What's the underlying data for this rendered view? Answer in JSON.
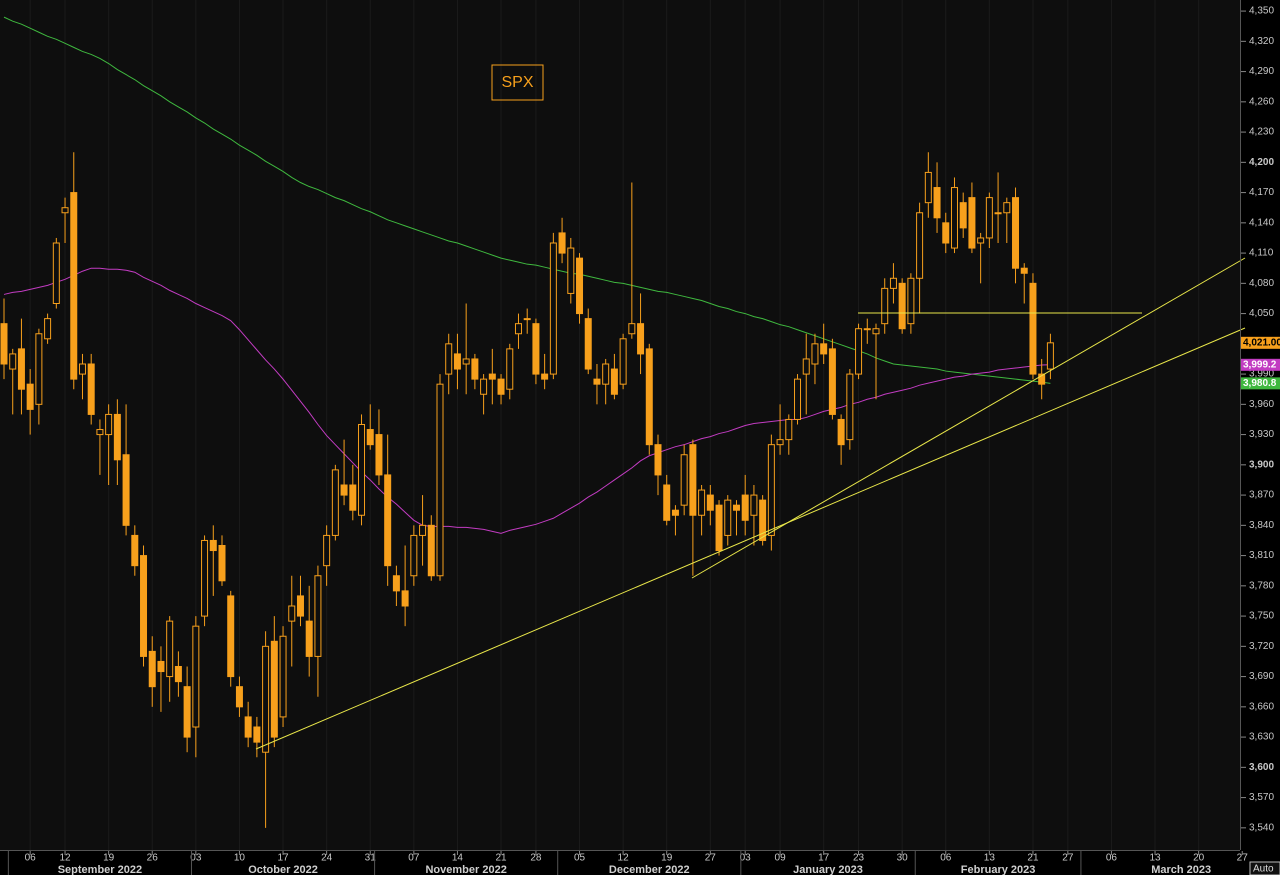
{
  "chart_data": {
    "type": "candlestick",
    "title": "SPX",
    "x": [
      "2022-08-31",
      "2022-09-01",
      "2022-09-02",
      "2022-09-06",
      "2022-09-07",
      "2022-09-08",
      "2022-09-09",
      "2022-09-12",
      "2022-09-13",
      "2022-09-14",
      "2022-09-15",
      "2022-09-16",
      "2022-09-19",
      "2022-09-20",
      "2022-09-21",
      "2022-09-22",
      "2022-09-23",
      "2022-09-26",
      "2022-09-27",
      "2022-09-28",
      "2022-09-29",
      "2022-09-30",
      "2022-10-03",
      "2022-10-04",
      "2022-10-05",
      "2022-10-06",
      "2022-10-07",
      "2022-10-10",
      "2022-10-11",
      "2022-10-12",
      "2022-10-13",
      "2022-10-14",
      "2022-10-17",
      "2022-10-18",
      "2022-10-19",
      "2022-10-20",
      "2022-10-21",
      "2022-10-24",
      "2022-10-25",
      "2022-10-26",
      "2022-10-27",
      "2022-10-28",
      "2022-10-31",
      "2022-11-01",
      "2022-11-02",
      "2022-11-03",
      "2022-11-04",
      "2022-11-07",
      "2022-11-08",
      "2022-11-09",
      "2022-11-10",
      "2022-11-11",
      "2022-11-14",
      "2022-11-15",
      "2022-11-16",
      "2022-11-17",
      "2022-11-18",
      "2022-11-21",
      "2022-11-22",
      "2022-11-23",
      "2022-11-25",
      "2022-11-28",
      "2022-11-29",
      "2022-11-30",
      "2022-12-01",
      "2022-12-02",
      "2022-12-05",
      "2022-12-06",
      "2022-12-07",
      "2022-12-08",
      "2022-12-09",
      "2022-12-12",
      "2022-12-13",
      "2022-12-14",
      "2022-12-15",
      "2022-12-16",
      "2022-12-19",
      "2022-12-20",
      "2022-12-21",
      "2022-12-22",
      "2022-12-23",
      "2022-12-27",
      "2022-12-28",
      "2022-12-29",
      "2022-12-30",
      "2023-01-03",
      "2023-01-04",
      "2023-01-05",
      "2023-01-06",
      "2023-01-09",
      "2023-01-10",
      "2023-01-11",
      "2023-01-12",
      "2023-01-13",
      "2023-01-17",
      "2023-01-18",
      "2023-01-19",
      "2023-01-20",
      "2023-01-23",
      "2023-01-24",
      "2023-01-25",
      "2023-01-26",
      "2023-01-27",
      "2023-01-30",
      "2023-01-31",
      "2023-02-01",
      "2023-02-02",
      "2023-02-03",
      "2023-02-06",
      "2023-02-07",
      "2023-02-08",
      "2023-02-09",
      "2023-02-10",
      "2023-02-13",
      "2023-02-14",
      "2023-02-15",
      "2023-02-16",
      "2023-02-17",
      "2023-02-21",
      "2023-02-22",
      "2023-02-23"
    ],
    "ohlc": {
      "color": "#f7a01c",
      "last_value_label": "4,021.00",
      "open": [
        4040,
        3995,
        4015,
        3980,
        3960,
        4025,
        4060,
        4150,
        4170,
        3990,
        4000,
        3930,
        3930,
        3950,
        3910,
        3830,
        3810,
        3715,
        3705,
        3690,
        3700,
        3680,
        3640,
        3750,
        3825,
        3820,
        3770,
        3680,
        3650,
        3640,
        3615,
        3725,
        3650,
        3745,
        3770,
        3745,
        3710,
        3800,
        3830,
        3880,
        3880,
        3850,
        3935,
        3930,
        3890,
        3790,
        3775,
        3790,
        3830,
        3840,
        3790,
        3990,
        4010,
        4000,
        4005,
        3970,
        3990,
        3985,
        3975,
        4030,
        4045,
        4040,
        3990,
        3990,
        4130,
        4070,
        4105,
        4045,
        3985,
        3980,
        3995,
        3980,
        4030,
        4040,
        4015,
        3920,
        3880,
        3855,
        3860,
        3920,
        3850,
        3870,
        3860,
        3830,
        3860,
        3870,
        3850,
        3865,
        3830,
        3920,
        3925,
        3945,
        3990,
        4000,
        4020,
        4015,
        3945,
        3925,
        3990,
        4035,
        4030,
        4040,
        4075,
        4080,
        4040,
        4085,
        4160,
        4175,
        4140,
        4115,
        4160,
        4165,
        4120,
        4125,
        4150,
        4150,
        4165,
        4095,
        4080,
        3990,
        3995
      ],
      "high": [
        4065,
        4015,
        4045,
        3995,
        4035,
        4050,
        4125,
        4165,
        4210,
        4010,
        4010,
        3945,
        3960,
        3965,
        3960,
        3840,
        3820,
        3730,
        3720,
        3750,
        3715,
        3700,
        3750,
        3830,
        3840,
        3830,
        3775,
        3690,
        3665,
        3650,
        3735,
        3750,
        3740,
        3790,
        3790,
        3780,
        3800,
        3840,
        3900,
        3925,
        3900,
        3950,
        3960,
        3955,
        3930,
        3800,
        3820,
        3840,
        3870,
        3850,
        3990,
        4030,
        4030,
        4060,
        4010,
        3990,
        4015,
        3990,
        4020,
        4050,
        4055,
        4045,
        4010,
        4130,
        4145,
        4125,
        4110,
        4055,
        4000,
        4005,
        4010,
        4030,
        4180,
        4070,
        4020,
        3930,
        3890,
        3860,
        3920,
        3925,
        3880,
        3880,
        3865,
        3870,
        3865,
        3890,
        3880,
        3870,
        3930,
        3960,
        3950,
        3990,
        4030,
        4030,
        4040,
        4025,
        3950,
        3995,
        4040,
        4045,
        4040,
        4085,
        4100,
        4085,
        4090,
        4160,
        4210,
        4200,
        4150,
        4185,
        4170,
        4180,
        4130,
        4170,
        4190,
        4165,
        4175,
        4100,
        4090,
        4005,
        4030
      ],
      "low": [
        3985,
        3950,
        3950,
        3930,
        3940,
        4020,
        4055,
        4120,
        3975,
        3965,
        3940,
        3890,
        3880,
        3880,
        3830,
        3790,
        3700,
        3660,
        3655,
        3665,
        3670,
        3615,
        3610,
        3740,
        3770,
        3780,
        3680,
        3650,
        3620,
        3610,
        3540,
        3620,
        3640,
        3700,
        3740,
        3690,
        3670,
        3780,
        3825,
        3860,
        3845,
        3840,
        3915,
        3880,
        3780,
        3760,
        3740,
        3780,
        3800,
        3785,
        3785,
        3970,
        3975,
        3970,
        3975,
        3950,
        3960,
        3960,
        3965,
        4015,
        4030,
        3980,
        3975,
        3985,
        4100,
        4060,
        4040,
        3990,
        3960,
        3960,
        3965,
        3975,
        4025,
        3990,
        3910,
        3870,
        3840,
        3830,
        3850,
        3790,
        3830,
        3840,
        3810,
        3820,
        3830,
        3830,
        3820,
        3820,
        3815,
        3910,
        3910,
        3940,
        3950,
        3980,
        4000,
        3945,
        3900,
        3915,
        3985,
        4020,
        3965,
        4030,
        4060,
        4030,
        4030,
        4050,
        4145,
        4130,
        4110,
        4110,
        4125,
        4110,
        4080,
        4115,
        4120,
        4120,
        4080,
        4060,
        3985,
        3965,
        3985
      ],
      "close": [
        4000,
        4010,
        3975,
        3955,
        4030,
        4045,
        4120,
        4155,
        3985,
        4000,
        3950,
        3935,
        3950,
        3905,
        3840,
        3800,
        3710,
        3680,
        3695,
        3745,
        3685,
        3630,
        3740,
        3825,
        3815,
        3785,
        3690,
        3660,
        3630,
        3625,
        3720,
        3630,
        3730,
        3760,
        3750,
        3710,
        3790,
        3830,
        3895,
        3870,
        3855,
        3940,
        3920,
        3890,
        3800,
        3775,
        3760,
        3830,
        3840,
        3790,
        3980,
        4020,
        3995,
        4005,
        3985,
        3985,
        3985,
        3970,
        4015,
        4040,
        4045,
        3990,
        3985,
        4120,
        4110,
        4115,
        4050,
        3995,
        3980,
        4000,
        3970,
        4025,
        4040,
        4010,
        3920,
        3890,
        3845,
        3850,
        3910,
        3850,
        3875,
        3855,
        3815,
        3865,
        3855,
        3845,
        3870,
        3825,
        3920,
        3925,
        3945,
        3985,
        4005,
        4020,
        4010,
        3950,
        3920,
        3990,
        4035,
        4035,
        4035,
        4075,
        4085,
        4035,
        4085,
        4150,
        4190,
        4145,
        4120,
        4175,
        4135,
        4115,
        4125,
        4165,
        4150,
        4160,
        4095,
        4090,
        3990,
        3980,
        4021
      ]
    },
    "lines": [
      {
        "color": "#3fb83f",
        "last_value_label": "3,980.8",
        "values": [
          4344,
          4340,
          4337,
          4333,
          4329,
          4325,
          4322,
          4318,
          4314,
          4310,
          4307,
          4303,
          4298,
          4292,
          4287,
          4282,
          4276,
          4271,
          4266,
          4260,
          4255,
          4250,
          4244,
          4239,
          4233,
          4228,
          4223,
          4217,
          4212,
          4207,
          4201,
          4196,
          4191,
          4185,
          4180,
          4176,
          4173,
          4169,
          4165,
          4162,
          4158,
          4154,
          4151,
          4147,
          4143,
          4140,
          4137,
          4134,
          4131,
          4128,
          4125,
          4122,
          4120,
          4117,
          4114,
          4111,
          4108,
          4105,
          4103,
          4101,
          4099,
          4098,
          4096,
          4094,
          4092,
          4090,
          4089,
          4087,
          4085,
          4083,
          4081,
          4080,
          4078,
          4076,
          4074,
          4072,
          4071,
          4069,
          4067,
          4065,
          4063,
          4060,
          4057,
          4055,
          4052,
          4050,
          4047,
          4045,
          4042,
          4039,
          4037,
          4034,
          4031,
          4028,
          4025,
          4022,
          4019,
          4016,
          4013,
          4010,
          4006,
          4003,
          4000,
          3999,
          3998,
          3997,
          3996,
          3995,
          3993,
          3992,
          3991,
          3990,
          3989,
          3988,
          3987,
          3986,
          3985,
          3984,
          3983,
          3982,
          3980.8
        ]
      },
      {
        "color": "#c23cc2",
        "last_value_label": "3,999.2",
        "values": [
          4069,
          4071,
          4072,
          4074,
          4076,
          4078,
          4081,
          4084,
          4088,
          4092,
          4095,
          4095,
          4094,
          4094,
          4093,
          4091,
          4086,
          4082,
          4078,
          4073,
          4069,
          4065,
          4060,
          4056,
          4052,
          4048,
          4043,
          4034,
          4024,
          4014,
          4004,
          3995,
          3985,
          3974,
          3963,
          3952,
          3940,
          3929,
          3920,
          3911,
          3902,
          3893,
          3885,
          3876,
          3868,
          3861,
          3853,
          3845,
          3840,
          3839,
          3839,
          3839,
          3838,
          3838,
          3837,
          3836,
          3834,
          3832,
          3835,
          3837,
          3839,
          3841,
          3844,
          3847,
          3852,
          3857,
          3862,
          3868,
          3873,
          3879,
          3885,
          3891,
          3897,
          3904,
          3909,
          3912,
          3915,
          3918,
          3920,
          3923,
          3926,
          3928,
          3931,
          3933,
          3936,
          3939,
          3941,
          3942,
          3943,
          3944,
          3945,
          3945,
          3947,
          3950,
          3953,
          3955,
          3957,
          3960,
          3962,
          3965,
          3967,
          3970,
          3972,
          3974,
          3976,
          3979,
          3981,
          3983,
          3985,
          3987,
          3988,
          3990,
          3991,
          3992,
          3994,
          3995,
          3996,
          3997,
          3998,
          3999,
          3999.2
        ]
      }
    ],
    "ylim": [
      3520,
      4360
    ],
    "yticks": [
      {
        "value": 4350,
        "label": "4,350"
      },
      {
        "value": 4320,
        "label": "4,320"
      },
      {
        "value": 4290,
        "label": "4,290"
      },
      {
        "value": 4260,
        "label": "4,260"
      },
      {
        "value": 4230,
        "label": "4,230"
      },
      {
        "value": 4200,
        "label": "4,200"
      },
      {
        "value": 4170,
        "label": "4,170"
      },
      {
        "value": 4140,
        "label": "4,140"
      },
      {
        "value": 4110,
        "label": "4,110"
      },
      {
        "value": 4080,
        "label": "4,080"
      },
      {
        "value": 4050,
        "label": "4,050"
      },
      {
        "value": 4020,
        "label": "4,020"
      },
      {
        "value": 3990,
        "label": "3,990"
      },
      {
        "value": 3960,
        "label": "3,960"
      },
      {
        "value": 3930,
        "label": "3,930"
      },
      {
        "value": 3900,
        "label": "3,900"
      },
      {
        "value": 3870,
        "label": "3,870"
      },
      {
        "value": 3840,
        "label": "3,840"
      },
      {
        "value": 3810,
        "label": "3,810"
      },
      {
        "value": 3780,
        "label": "3,780"
      },
      {
        "value": 3750,
        "label": "3,750"
      },
      {
        "value": 3720,
        "label": "3,720"
      },
      {
        "value": 3690,
        "label": "3,690"
      },
      {
        "value": 3660,
        "label": "3,660"
      },
      {
        "value": 3630,
        "label": "3,630"
      },
      {
        "value": 3600,
        "label": "3,600"
      },
      {
        "value": 3570,
        "label": "3,570"
      },
      {
        "value": 3540,
        "label": "3,540"
      }
    ],
    "xticks": [
      {
        "value": "2022-09-06",
        "label": "06"
      },
      {
        "value": "2022-09-12",
        "label": "12"
      },
      {
        "value": "2022-09-19",
        "label": "19"
      },
      {
        "value": "2022-09-26",
        "label": "26"
      },
      {
        "value": "2022-10-03",
        "label": "03"
      },
      {
        "value": "2022-10-10",
        "label": "10"
      },
      {
        "value": "2022-10-17",
        "label": "17"
      },
      {
        "value": "2022-10-24",
        "label": "24"
      },
      {
        "value": "2022-10-31",
        "label": "31"
      },
      {
        "value": "2022-11-07",
        "label": "07"
      },
      {
        "value": "2022-11-14",
        "label": "14"
      },
      {
        "value": "2022-11-21",
        "label": "21"
      },
      {
        "value": "2022-11-28",
        "label": "28"
      },
      {
        "value": "2022-12-05",
        "label": "05"
      },
      {
        "value": "2022-12-12",
        "label": "12"
      },
      {
        "value": "2022-12-19",
        "label": "19"
      },
      {
        "value": "2022-12-27",
        "label": "27"
      },
      {
        "value": "2023-01-03",
        "label": "03"
      },
      {
        "value": "2023-01-09",
        "label": "09"
      },
      {
        "value": "2023-01-17",
        "label": "17"
      },
      {
        "value": "2023-01-23",
        "label": "23"
      },
      {
        "value": "2023-01-30",
        "label": "30"
      },
      {
        "value": "2023-02-06",
        "label": "06"
      },
      {
        "value": "2023-02-13",
        "label": "13"
      },
      {
        "value": "2023-02-21",
        "label": "21"
      },
      {
        "value": "2023-02-27",
        "label": "27"
      },
      {
        "value": "2023-03-06",
        "label": "06"
      },
      {
        "value": "2023-03-13",
        "label": "13"
      },
      {
        "value": "2023-03-20",
        "label": "20"
      },
      {
        "value": "2023-03-27",
        "label": "27"
      }
    ],
    "months": [
      {
        "value": "2022-09",
        "label": "September 2022"
      },
      {
        "value": "2022-10",
        "label": "October 2022"
      },
      {
        "value": "2022-11",
        "label": "November 2022"
      },
      {
        "value": "2022-12",
        "label": "December 2022"
      },
      {
        "value": "2023-01",
        "label": "January 2023"
      },
      {
        "value": "2023-02",
        "label": "February 2023"
      },
      {
        "value": "2023-03",
        "label": "March 2023"
      }
    ],
    "grid": true
  },
  "controls": {
    "auto": "Auto"
  }
}
